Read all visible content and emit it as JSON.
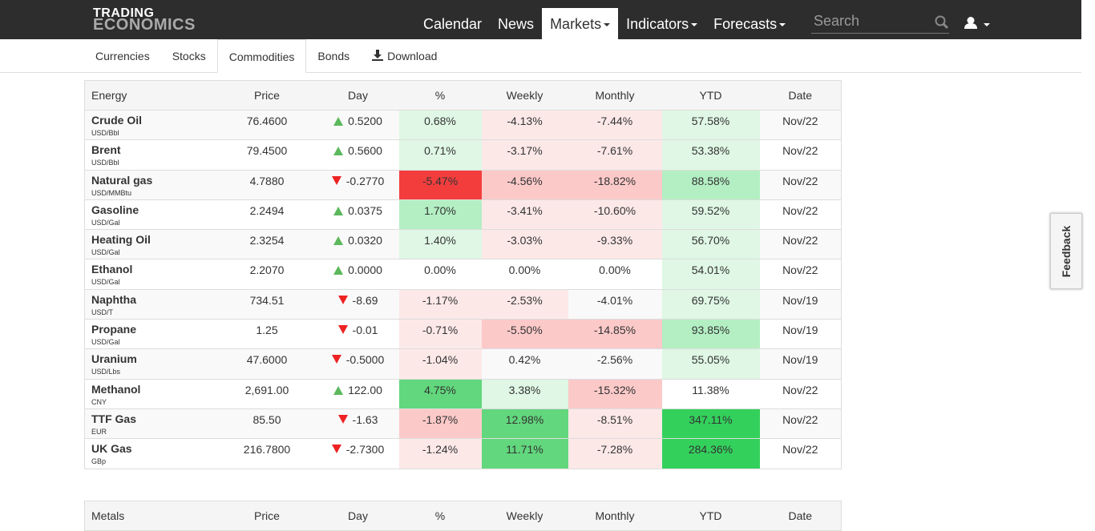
{
  "header": {
    "logo": [
      "TRADING",
      "ECONOMICS"
    ],
    "nav": [
      "Calendar",
      "News",
      "Markets",
      "Indicators",
      "Forecasts"
    ],
    "search_placeholder": "Search"
  },
  "tabs": [
    "Currencies",
    "Stocks",
    "Commodities",
    "Bonds",
    "Download"
  ],
  "table": {
    "columns": [
      "Energy",
      "Price",
      "Day",
      "%",
      "Weekly",
      "Monthly",
      "YTD",
      "Date"
    ],
    "rows": [
      {
        "name": "Crude Oil",
        "unit": "USD/Bbl",
        "cells": [
          "76.4600",
          "0.5200",
          "0.68%",
          "-4.13%",
          "-7.44%",
          "57.58%",
          "Nov/22"
        ]
      },
      {
        "name": "Brent",
        "unit": "USD/Bbl",
        "cells": [
          "79.4500",
          "0.5600",
          "0.71%",
          "-3.17%",
          "-7.61%",
          "53.38%",
          "Nov/22"
        ]
      },
      {
        "name": "Natural gas",
        "unit": "USD/MMBtu",
        "cells": [
          "4.7880",
          "-0.2770",
          "-5.47%",
          "-4.56%",
          "-18.82%",
          "88.58%",
          "Nov/22"
        ]
      },
      {
        "name": "Gasoline",
        "unit": "USD/Gal",
        "cells": [
          "2.2494",
          "0.0375",
          "1.70%",
          "-3.41%",
          "-10.60%",
          "59.52%",
          "Nov/22"
        ]
      },
      {
        "name": "Heating Oil",
        "unit": "USD/Gal",
        "cells": [
          "2.3254",
          "0.0320",
          "1.40%",
          "-3.03%",
          "-9.33%",
          "56.70%",
          "Nov/22"
        ]
      },
      {
        "name": "Ethanol",
        "unit": "USD/Gal",
        "cells": [
          "2.2070",
          "0.0000",
          "0.00%",
          "0.00%",
          "0.00%",
          "54.01%",
          "Nov/22"
        ]
      },
      {
        "name": "Naphtha",
        "unit": "USD/T",
        "cells": [
          "734.51",
          "-8.69",
          "-1.17%",
          "-2.53%",
          "-4.01%",
          "69.75%",
          "Nov/19"
        ]
      },
      {
        "name": "Propane",
        "unit": "USD/Gal",
        "cells": [
          "1.25",
          "-0.01",
          "-0.71%",
          "-5.50%",
          "-14.85%",
          "93.85%",
          "Nov/19"
        ]
      },
      {
        "name": "Uranium",
        "unit": "USD/Lbs",
        "cells": [
          "47.6000",
          "-0.5000",
          "-1.04%",
          "0.42%",
          "-2.56%",
          "55.05%",
          "Nov/19"
        ]
      },
      {
        "name": "Methanol",
        "unit": "CNY",
        "cells": [
          "2,691.00",
          "122.00",
          "4.75%",
          "3.38%",
          "-15.32%",
          "11.38%",
          "Nov/22"
        ]
      },
      {
        "name": "TTF Gas",
        "unit": "EUR",
        "cells": [
          "85.50",
          "-1.63",
          "-1.87%",
          "12.98%",
          "-8.51%",
          "347.11%",
          "Nov/22"
        ]
      },
      {
        "name": "UK Gas",
        "unit": "GBp",
        "cells": [
          "216.7800",
          "-2.7300",
          "-1.24%",
          "11.71%",
          "-7.28%",
          "284.36%",
          "Nov/22"
        ]
      }
    ]
  },
  "next_table": {
    "columns": [
      "Metals",
      "Price",
      "Day",
      "%",
      "Weekly",
      "Monthly",
      "YTD",
      "Date"
    ]
  },
  "feedback": "Feedback"
}
